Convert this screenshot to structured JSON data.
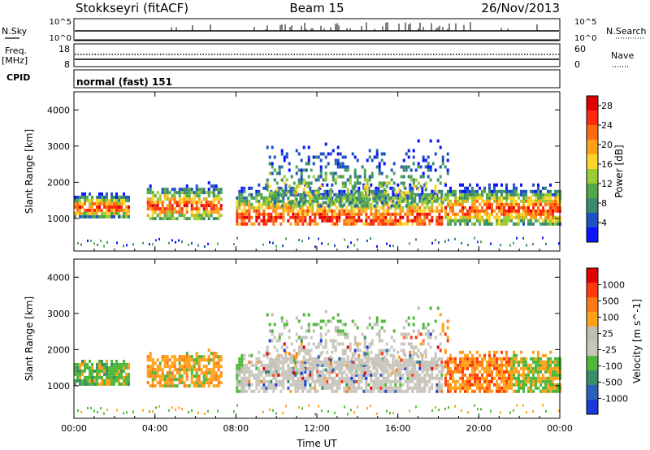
{
  "header": {
    "station": "Stokkseyri (fitACF)",
    "beam": "Beam 15",
    "date": "26/Nov/2013"
  },
  "strip_panels": {
    "nsky_label": "N.Sky",
    "nsearch_label": "N.Search",
    "nsky_scale_top": "10^5",
    "nsky_scale_bottom": "10^0",
    "freq_label": "Freq.",
    "freq_unit": "[MHz]",
    "freq_ticks": [
      "18",
      "8"
    ],
    "nave_label": "Nave",
    "nave_ticks": [
      "60",
      "0"
    ],
    "cpid_label": "CPID",
    "cpid_value": "normal (fast) 151"
  },
  "chart_data": [
    {
      "type": "heatmap",
      "name": "power",
      "ylabel": "Slant Range [km]",
      "ylim": [
        100,
        4500
      ],
      "y_ticks": [
        "1000",
        "2000",
        "3000",
        "4000"
      ],
      "x_ticks": [
        "00:00",
        "04:00",
        "08:00",
        "12:00",
        "16:00",
        "20:00",
        "00:00"
      ],
      "xlim_hours": [
        0,
        24
      ],
      "colorbar": {
        "label": "Power [dB]",
        "ticks": [
          "4",
          "8",
          "12",
          "16",
          "20",
          "24",
          "28"
        ],
        "range": [
          0,
          30
        ],
        "colors": [
          "#0a14ff",
          "#1f53c2",
          "#3a8a6f",
          "#50a84a",
          "#9ccb36",
          "#ffd42a",
          "#ffa21a",
          "#ff6a10",
          "#ff2a0a",
          "#e00000"
        ]
      },
      "echo_bands": [
        {
          "t_start": 0.0,
          "t_end": 2.7,
          "r_low": 1000,
          "r_high": 1700,
          "core": 1250,
          "level": "high"
        },
        {
          "t_start": 3.6,
          "t_end": 7.3,
          "r_low": 950,
          "r_high": 2000,
          "core": 1300,
          "level": "high"
        },
        {
          "t_start": 8.0,
          "t_end": 18.2,
          "r_low": 800,
          "r_high": 2400,
          "core": 950,
          "level": "high"
        },
        {
          "t_start": 9.5,
          "t_end": 18.5,
          "r_low": 1300,
          "r_high": 3300,
          "core": 1700,
          "level": "mid"
        },
        {
          "t_start": 18.3,
          "t_end": 24.0,
          "r_low": 800,
          "r_high": 2000,
          "core": 1200,
          "level": "high"
        }
      ]
    },
    {
      "type": "heatmap",
      "name": "velocity",
      "ylabel": "Slant Range [km]",
      "ylim": [
        100,
        4500
      ],
      "y_ticks": [
        "1000",
        "2000",
        "3000",
        "4000"
      ],
      "x_ticks": [
        "00:00",
        "04:00",
        "08:00",
        "12:00",
        "16:00",
        "20:00",
        "00:00"
      ],
      "xlim_hours": [
        0,
        24
      ],
      "xlabel": "Time UT",
      "colorbar": {
        "label": "Velocity [m s^-1]",
        "ticks": [
          "1000",
          "500",
          "100",
          "25",
          "-25",
          "-100",
          "-500",
          "-1000"
        ],
        "colors": [
          "#1a3ad8",
          "#2a62b8",
          "#3a8e6a",
          "#4fb83a",
          "#c8c6bc",
          "#c0bfb6",
          "#ffa21a",
          "#ff7a14",
          "#ff3a0a",
          "#e40000"
        ]
      }
    }
  ]
}
